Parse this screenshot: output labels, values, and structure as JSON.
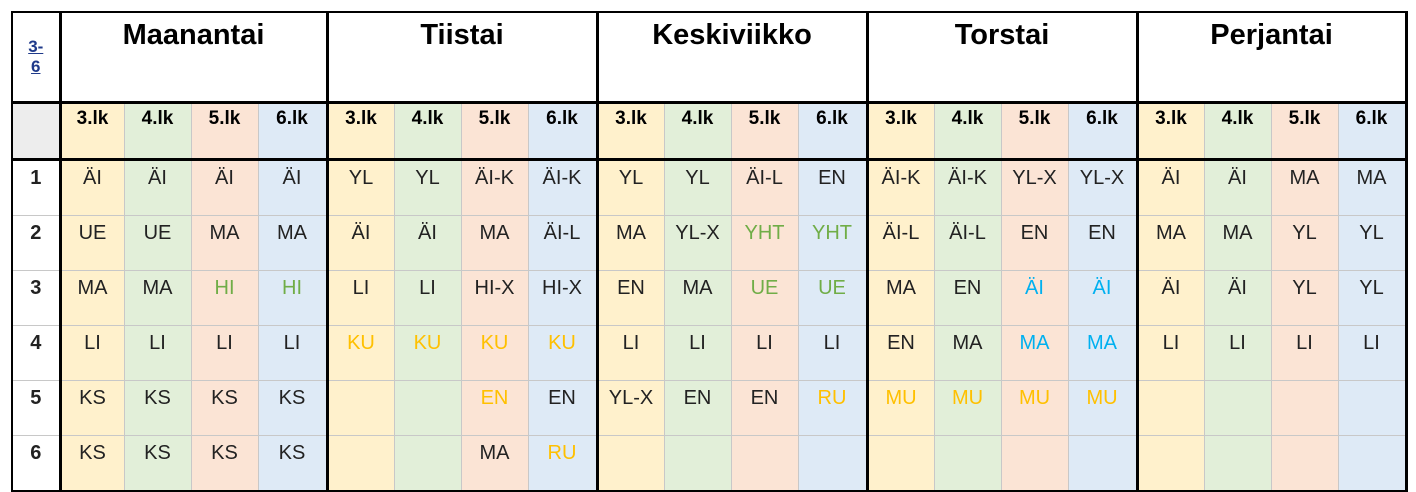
{
  "corner_label": "3-\n6",
  "days": [
    "Maanantai",
    "Tiistai",
    "Keskiviikko",
    "Torstai",
    "Perjantai"
  ],
  "grades": [
    "3.lk",
    "4.lk",
    "5.lk",
    "6.lk"
  ],
  "colors": {
    "grade_3": "#fff1cc",
    "grade_4": "#e2efd9",
    "grade_5": "#fbe4d5",
    "grade_6": "#deeaf6",
    "text_default": "#222222",
    "text_green": "#70ad47",
    "text_orange": "#ffc000",
    "text_blue": "#00b0f0"
  },
  "rows": [
    {
      "num": "1",
      "cells": [
        {
          "t": "ÄI"
        },
        {
          "t": "ÄI"
        },
        {
          "t": "ÄI"
        },
        {
          "t": "ÄI"
        },
        {
          "t": "YL"
        },
        {
          "t": "YL"
        },
        {
          "t": "ÄI-K"
        },
        {
          "t": "ÄI-K"
        },
        {
          "t": "YL"
        },
        {
          "t": "YL"
        },
        {
          "t": "ÄI-L"
        },
        {
          "t": "EN"
        },
        {
          "t": "ÄI-K"
        },
        {
          "t": "ÄI-K"
        },
        {
          "t": "YL-X"
        },
        {
          "t": "YL-X"
        },
        {
          "t": "ÄI"
        },
        {
          "t": "ÄI"
        },
        {
          "t": "MA"
        },
        {
          "t": "MA"
        }
      ]
    },
    {
      "num": "2",
      "cells": [
        {
          "t": "UE"
        },
        {
          "t": "UE"
        },
        {
          "t": "MA"
        },
        {
          "t": "MA"
        },
        {
          "t": "ÄI"
        },
        {
          "t": "ÄI"
        },
        {
          "t": "MA"
        },
        {
          "t": "ÄI-L"
        },
        {
          "t": "MA"
        },
        {
          "t": "YL-X"
        },
        {
          "t": "YHT",
          "c": "text_green"
        },
        {
          "t": "YHT",
          "c": "text_green"
        },
        {
          "t": "ÄI-L"
        },
        {
          "t": "ÄI-L"
        },
        {
          "t": "EN"
        },
        {
          "t": "EN"
        },
        {
          "t": "MA"
        },
        {
          "t": "MA"
        },
        {
          "t": "YL"
        },
        {
          "t": "YL"
        }
      ]
    },
    {
      "num": "3",
      "cells": [
        {
          "t": "MA"
        },
        {
          "t": "MA"
        },
        {
          "t": "HI",
          "c": "text_green"
        },
        {
          "t": "HI",
          "c": "text_green"
        },
        {
          "t": "LI"
        },
        {
          "t": "LI"
        },
        {
          "t": "HI-X"
        },
        {
          "t": "HI-X"
        },
        {
          "t": "EN"
        },
        {
          "t": "MA"
        },
        {
          "t": "UE",
          "c": "text_green"
        },
        {
          "t": "UE",
          "c": "text_green"
        },
        {
          "t": "MA"
        },
        {
          "t": "EN"
        },
        {
          "t": "ÄI",
          "c": "text_blue"
        },
        {
          "t": "ÄI",
          "c": "text_blue"
        },
        {
          "t": "ÄI"
        },
        {
          "t": "ÄI"
        },
        {
          "t": "YL"
        },
        {
          "t": "YL"
        }
      ]
    },
    {
      "num": "4",
      "cells": [
        {
          "t": "LI"
        },
        {
          "t": "LI"
        },
        {
          "t": "LI"
        },
        {
          "t": "LI"
        },
        {
          "t": "KU",
          "c": "text_orange"
        },
        {
          "t": "KU",
          "c": "text_orange"
        },
        {
          "t": "KU",
          "c": "text_orange"
        },
        {
          "t": "KU",
          "c": "text_orange"
        },
        {
          "t": "LI"
        },
        {
          "t": "LI"
        },
        {
          "t": "LI"
        },
        {
          "t": "LI"
        },
        {
          "t": "EN"
        },
        {
          "t": "MA"
        },
        {
          "t": "MA",
          "c": "text_blue"
        },
        {
          "t": "MA",
          "c": "text_blue"
        },
        {
          "t": "LI"
        },
        {
          "t": "LI"
        },
        {
          "t": "LI"
        },
        {
          "t": "LI"
        }
      ]
    },
    {
      "num": "5",
      "cells": [
        {
          "t": "KS"
        },
        {
          "t": "KS"
        },
        {
          "t": "KS"
        },
        {
          "t": "KS"
        },
        {
          "t": ""
        },
        {
          "t": ""
        },
        {
          "t": "EN",
          "c": "text_orange"
        },
        {
          "t": "EN"
        },
        {
          "t": "YL-X"
        },
        {
          "t": "EN"
        },
        {
          "t": "EN"
        },
        {
          "t": "RU",
          "c": "text_orange"
        },
        {
          "t": "MU",
          "c": "text_orange"
        },
        {
          "t": "MU",
          "c": "text_orange"
        },
        {
          "t": "MU",
          "c": "text_orange"
        },
        {
          "t": "MU",
          "c": "text_orange"
        },
        {
          "t": ""
        },
        {
          "t": ""
        },
        {
          "t": ""
        },
        {
          "t": ""
        }
      ]
    },
    {
      "num": "6",
      "cells": [
        {
          "t": "KS"
        },
        {
          "t": "KS"
        },
        {
          "t": "KS"
        },
        {
          "t": "KS"
        },
        {
          "t": ""
        },
        {
          "t": ""
        },
        {
          "t": "MA"
        },
        {
          "t": "RU",
          "c": "text_orange"
        },
        {
          "t": ""
        },
        {
          "t": ""
        },
        {
          "t": ""
        },
        {
          "t": ""
        },
        {
          "t": ""
        },
        {
          "t": ""
        },
        {
          "t": ""
        },
        {
          "t": ""
        },
        {
          "t": ""
        },
        {
          "t": ""
        },
        {
          "t": ""
        },
        {
          "t": ""
        }
      ]
    }
  ]
}
